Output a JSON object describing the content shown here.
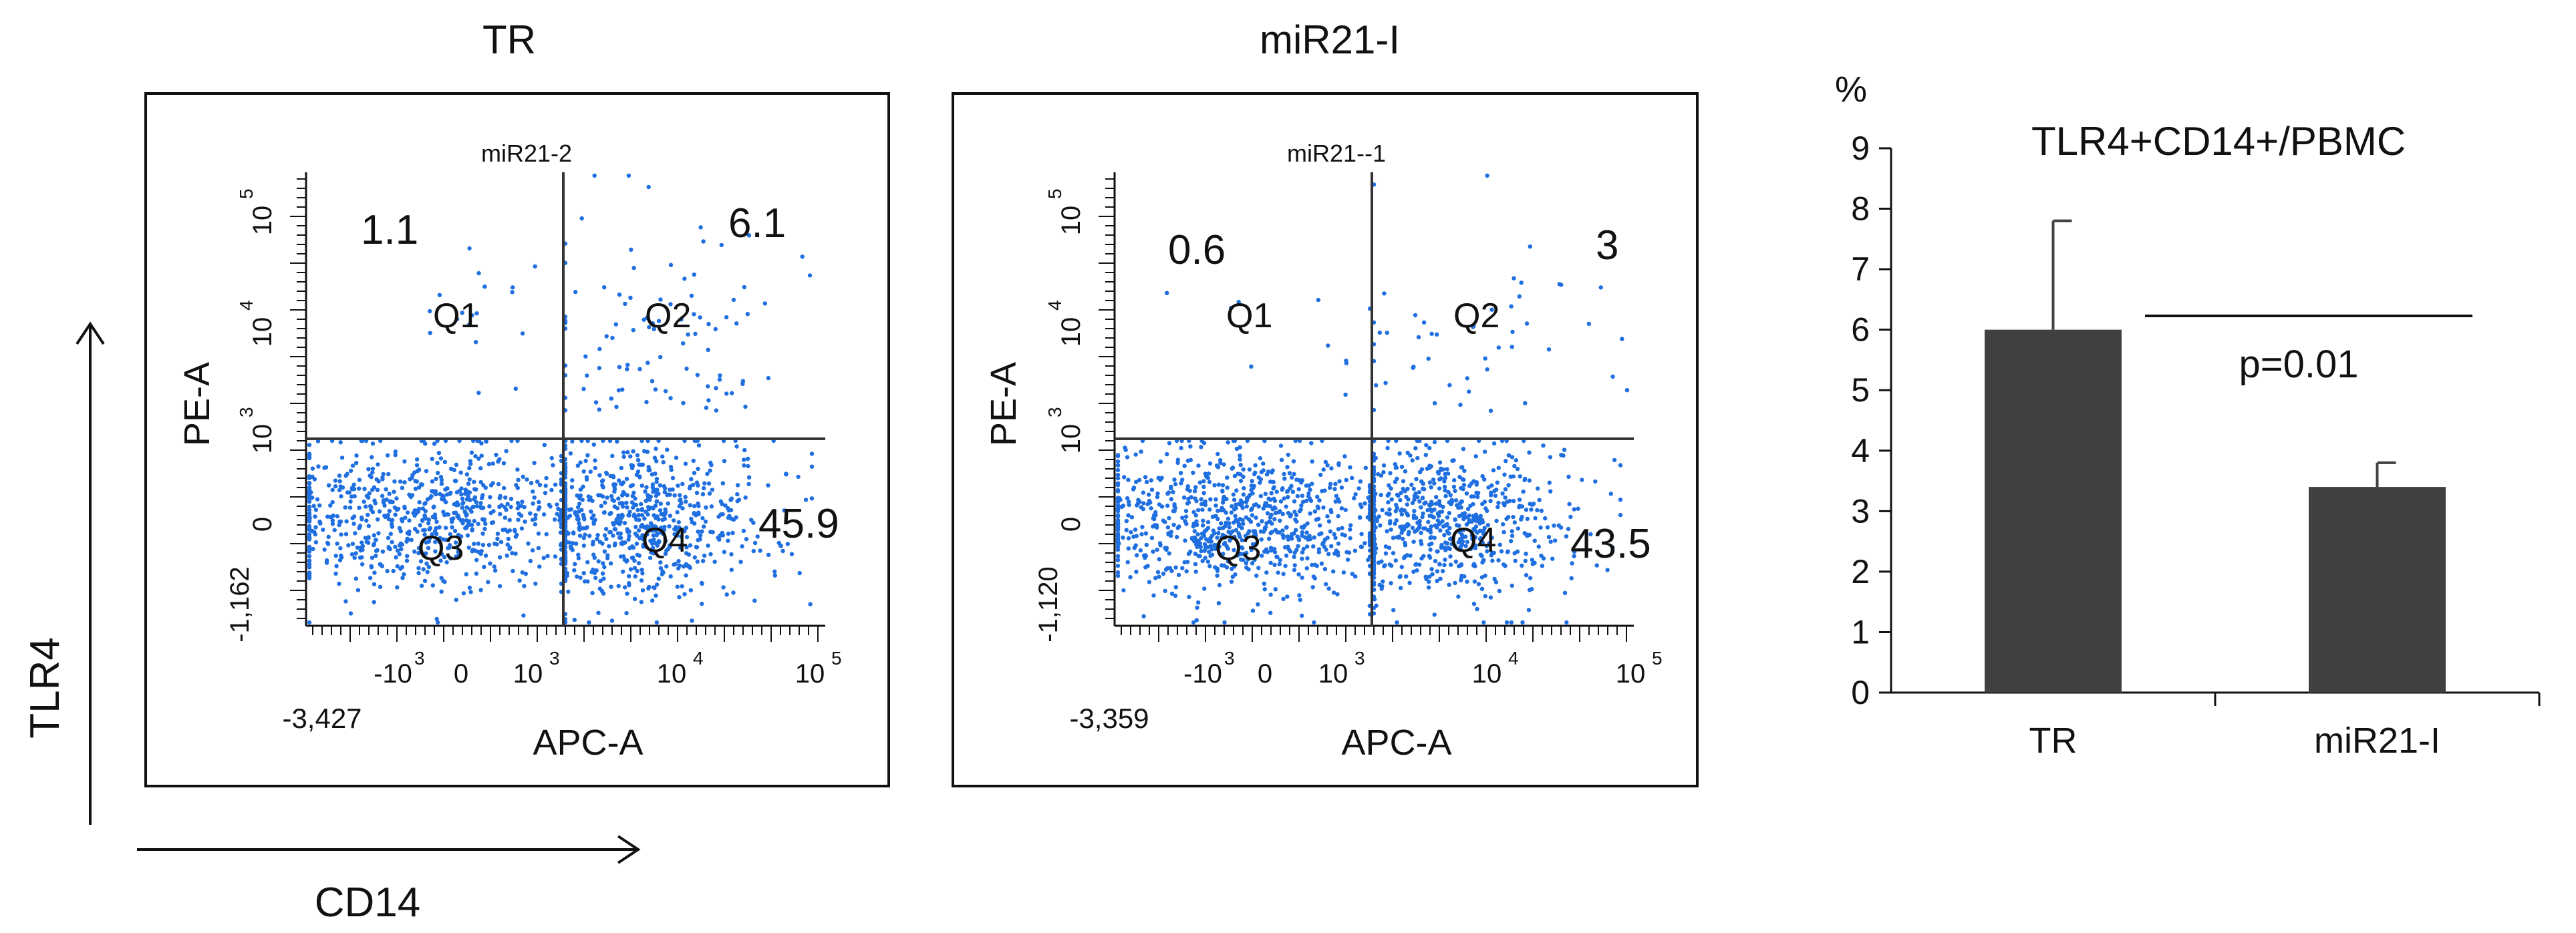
{
  "axis_labels": {
    "y": "TLR4",
    "x": "CD14"
  },
  "flow_plots": [
    {
      "title": "TR",
      "sample": "miR21-2",
      "x_label": "APC-A",
      "y_label": "PE-A",
      "x_min_label": "-3,427",
      "y_min_label": "-1,162",
      "quadrants": {
        "q1": {
          "label": "Q1",
          "value": "1.1"
        },
        "q2": {
          "label": "Q2",
          "value": "6.1"
        },
        "q3": {
          "label": "Q3"
        },
        "q4": {
          "label": "Q4",
          "value": "45.9"
        }
      },
      "seed": 11,
      "fractions": {
        "q1": 0.011,
        "q2": 0.061,
        "q4": 0.459
      }
    },
    {
      "title": "miR21-I",
      "sample": "miR21--1",
      "x_label": "APC-A",
      "y_label": "PE-A",
      "x_min_label": "-3,359",
      "y_min_label": "-1,120",
      "quadrants": {
        "q1": {
          "label": "Q1",
          "value": "0.6"
        },
        "q2": {
          "label": "Q2",
          "value": "3"
        },
        "q3": {
          "label": "Q3"
        },
        "q4": {
          "label": "Q4",
          "value": "43.5"
        }
      },
      "seed": 23,
      "fractions": {
        "q1": 0.006,
        "q2": 0.03,
        "q4": 0.435
      }
    }
  ],
  "flow_tick_labels": {
    "x": [
      "-10",
      "0",
      "10",
      "10",
      "10"
    ],
    "x_exp": [
      "3",
      "",
      "3",
      "4",
      "5"
    ],
    "y": [
      "0",
      "10",
      "10",
      "10"
    ],
    "y_exp": [
      "",
      "3",
      "4",
      "5"
    ]
  },
  "chart_data": {
    "type": "bar",
    "title": "TLR4+CD14+/PBMC",
    "ylabel": "%",
    "categories": [
      "TR",
      "miR21-I"
    ],
    "values": [
      6.0,
      3.4
    ],
    "errors": [
      1.8,
      0.4
    ],
    "ylim": [
      0,
      9
    ],
    "yticks": [
      "0",
      "1",
      "2",
      "3",
      "4",
      "5",
      "6",
      "7",
      "8",
      "9"
    ],
    "annotation": "p=0.01",
    "bar_color": "#404040"
  },
  "colors": {
    "dots": "#1f6fe0",
    "axis": "#111111"
  }
}
